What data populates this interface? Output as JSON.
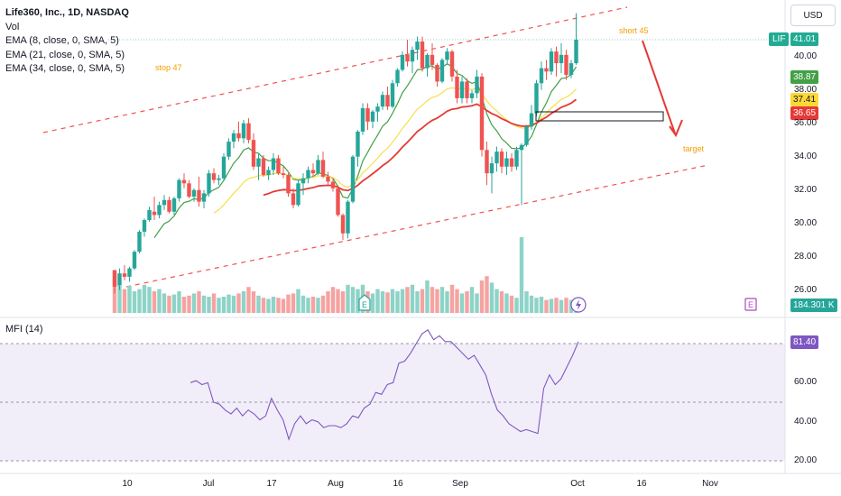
{
  "legend": {
    "title": "Life360, Inc., 1D, NASDAQ",
    "vol": "Vol",
    "ema1": "EMA (8, close, 0, SMA, 5)",
    "ema2": "EMA (21, close, 0, SMA, 5)",
    "ema3": "EMA (34, close, 0, SMA, 5)"
  },
  "currency_button": "USD",
  "ticker": "LIF",
  "last_price": "41.01",
  "ema_values": {
    "ema8": "38.87",
    "ema21": "37.41",
    "ema34": "36.65"
  },
  "volume_value": "184.301 K",
  "mfi": {
    "label": "MFI (14)",
    "value": "81.40"
  },
  "annotations": {
    "stop": "stop 47",
    "short": "short 45",
    "target": "target"
  },
  "price_axis": [
    "40.00",
    "38.00",
    "36.00",
    "34.00",
    "32.00",
    "30.00",
    "28.00",
    "26.00"
  ],
  "mfi_axis": [
    "60.00",
    "40.00",
    "20.00"
  ],
  "time_axis": [
    "10",
    "Jul",
    "17",
    "Aug",
    "16",
    "Sep",
    "Oct",
    "16",
    "Nov"
  ],
  "colors": {
    "up": "#26a69a",
    "down": "#ef5350",
    "ema8": "#43a047",
    "ema21": "#f4e04d",
    "ema34": "#e53935",
    "mfi": "#7e57c2",
    "annotation": "#f59d00"
  },
  "chart_data": {
    "type": "candlestick",
    "price_range": [
      25.5,
      42.6
    ],
    "candles": [
      [
        27.2,
        27.2,
        25.8,
        26.2
      ],
      [
        26.3,
        27.3,
        26.0,
        27.0
      ],
      [
        27.0,
        27.5,
        26.6,
        26.8
      ],
      [
        26.8,
        27.4,
        26.5,
        27.3
      ],
      [
        27.3,
        28.4,
        27.2,
        28.3
      ],
      [
        28.3,
        29.6,
        28.2,
        29.5
      ],
      [
        29.5,
        30.3,
        29.2,
        30.2
      ],
      [
        30.2,
        31.0,
        30.1,
        30.8
      ],
      [
        30.7,
        31.6,
        30.2,
        30.5
      ],
      [
        30.5,
        31.3,
        30.3,
        31.1
      ],
      [
        31.1,
        31.7,
        30.8,
        31.4
      ],
      [
        31.4,
        31.6,
        30.6,
        30.7
      ],
      [
        30.7,
        31.6,
        30.5,
        31.5
      ],
      [
        31.5,
        32.7,
        31.3,
        32.6
      ],
      [
        32.6,
        33.0,
        32.1,
        32.4
      ],
      [
        32.4,
        32.6,
        31.5,
        31.6
      ],
      [
        31.6,
        32.1,
        31.3,
        32.0
      ],
      [
        32.0,
        32.8,
        31.0,
        31.3
      ],
      [
        31.3,
        32.0,
        30.9,
        31.8
      ],
      [
        31.8,
        33.2,
        31.6,
        33.0
      ],
      [
        33.0,
        33.3,
        32.4,
        32.6
      ],
      [
        32.6,
        32.9,
        32.3,
        32.7
      ],
      [
        32.7,
        34.2,
        32.6,
        34.0
      ],
      [
        34.0,
        35.1,
        33.8,
        34.9
      ],
      [
        34.9,
        35.6,
        34.5,
        35.4
      ],
      [
        35.4,
        36.1,
        34.9,
        35.1
      ],
      [
        35.1,
        36.2,
        34.8,
        36.0
      ],
      [
        36.0,
        36.3,
        34.8,
        35.0
      ],
      [
        35.0,
        35.4,
        33.2,
        33.4
      ],
      [
        33.4,
        34.2,
        32.6,
        33.9
      ],
      [
        33.9,
        34.1,
        32.8,
        32.9
      ],
      [
        32.9,
        33.4,
        32.6,
        33.2
      ],
      [
        33.2,
        34.2,
        32.9,
        33.9
      ],
      [
        33.9,
        34.1,
        32.9,
        33.0
      ],
      [
        33.0,
        33.4,
        32.7,
        32.9
      ],
      [
        32.9,
        33.0,
        31.6,
        31.8
      ],
      [
        31.8,
        32.1,
        30.9,
        31.1
      ],
      [
        31.1,
        32.6,
        31.0,
        32.4
      ],
      [
        32.4,
        33.0,
        31.7,
        32.7
      ],
      [
        32.7,
        33.4,
        32.4,
        33.2
      ],
      [
        33.2,
        33.6,
        32.8,
        33.0
      ],
      [
        33.0,
        34.1,
        32.9,
        33.8
      ],
      [
        33.8,
        34.3,
        32.7,
        32.8
      ],
      [
        32.8,
        33.1,
        32.3,
        32.5
      ],
      [
        32.5,
        32.7,
        31.9,
        32.1
      ],
      [
        32.1,
        32.2,
        30.4,
        30.5
      ],
      [
        30.5,
        30.6,
        29.0,
        29.4
      ],
      [
        29.4,
        31.4,
        29.1,
        31.3
      ],
      [
        31.3,
        34.1,
        31.2,
        34.0
      ],
      [
        34.0,
        35.6,
        33.4,
        35.5
      ],
      [
        35.5,
        37.2,
        35.3,
        36.9
      ],
      [
        36.9,
        37.2,
        35.6,
        36.1
      ],
      [
        36.1,
        36.8,
        35.7,
        36.7
      ],
      [
        36.7,
        37.2,
        36.1,
        37.0
      ],
      [
        37.0,
        37.9,
        36.8,
        37.7
      ],
      [
        37.7,
        38.2,
        36.8,
        37.0
      ],
      [
        37.0,
        38.6,
        36.9,
        38.4
      ],
      [
        38.4,
        39.3,
        38.2,
        39.2
      ],
      [
        39.2,
        40.3,
        39.1,
        40.1
      ],
      [
        40.1,
        41.0,
        39.4,
        39.7
      ],
      [
        39.7,
        40.6,
        39.0,
        40.4
      ],
      [
        40.4,
        41.2,
        39.8,
        40.9
      ],
      [
        40.9,
        41.2,
        39.1,
        39.3
      ],
      [
        39.3,
        40.2,
        38.8,
        40.1
      ],
      [
        40.1,
        40.8,
        39.2,
        39.5
      ],
      [
        39.5,
        39.6,
        38.2,
        38.5
      ],
      [
        38.5,
        39.9,
        38.4,
        39.8
      ],
      [
        39.8,
        40.5,
        39.5,
        40.3
      ],
      [
        40.3,
        40.4,
        38.5,
        38.8
      ],
      [
        38.8,
        39.2,
        37.2,
        37.5
      ],
      [
        37.5,
        38.8,
        37.2,
        38.5
      ],
      [
        38.5,
        38.7,
        37.2,
        37.5
      ],
      [
        37.5,
        38.0,
        37.2,
        37.8
      ],
      [
        37.8,
        39.2,
        37.5,
        38.8
      ],
      [
        38.8,
        39.0,
        34.0,
        34.4
      ],
      [
        34.4,
        34.9,
        32.3,
        33.0
      ],
      [
        33.0,
        34.0,
        31.8,
        33.6
      ],
      [
        33.6,
        34.6,
        33.1,
        34.3
      ],
      [
        34.3,
        34.5,
        33.0,
        33.4
      ],
      [
        33.4,
        34.3,
        32.9,
        33.9
      ],
      [
        33.9,
        34.2,
        33.1,
        33.4
      ],
      [
        33.4,
        34.6,
        33.2,
        34.4
      ],
      [
        34.4,
        34.8,
        31.1,
        34.7
      ],
      [
        34.7,
        35.9,
        34.6,
        35.8
      ],
      [
        35.8,
        37.1,
        35.6,
        36.6
      ],
      [
        36.6,
        38.6,
        36.4,
        38.4
      ],
      [
        38.4,
        39.7,
        38.0,
        39.3
      ],
      [
        39.3,
        39.8,
        38.6,
        39.1
      ],
      [
        39.1,
        40.5,
        38.9,
        40.3
      ],
      [
        40.3,
        40.6,
        38.8,
        39.6
      ],
      [
        39.6,
        40.8,
        39.0,
        40.1
      ],
      [
        40.1,
        40.4,
        38.6,
        38.9
      ],
      [
        38.9,
        39.8,
        38.7,
        39.6
      ],
      [
        39.6,
        42.6,
        39.5,
        41.01
      ]
    ],
    "volume": [
      0.38,
      0.26,
      0.22,
      0.25,
      0.2,
      0.22,
      0.26,
      0.24,
      0.2,
      0.22,
      0.18,
      0.16,
      0.17,
      0.2,
      0.15,
      0.16,
      0.18,
      0.2,
      0.16,
      0.15,
      0.18,
      0.14,
      0.15,
      0.17,
      0.16,
      0.18,
      0.2,
      0.24,
      0.2,
      0.16,
      0.14,
      0.13,
      0.15,
      0.14,
      0.13,
      0.17,
      0.18,
      0.22,
      0.16,
      0.14,
      0.15,
      0.14,
      0.16,
      0.2,
      0.24,
      0.22,
      0.2,
      0.26,
      0.24,
      0.22,
      0.26,
      0.2,
      0.18,
      0.22,
      0.2,
      0.19,
      0.22,
      0.2,
      0.22,
      0.24,
      0.26,
      0.2,
      0.22,
      0.3,
      0.24,
      0.22,
      0.24,
      0.2,
      0.26,
      0.22,
      0.18,
      0.2,
      0.24,
      0.18,
      0.3,
      0.34,
      0.28,
      0.22,
      0.2,
      0.18,
      0.16,
      0.14,
      0.7,
      0.2,
      0.16,
      0.14,
      0.15,
      0.12,
      0.13,
      0.14,
      0.12,
      0.14,
      0.12,
      0.13
    ],
    "mfi": [
      60,
      61,
      59,
      60,
      50,
      49,
      46,
      44,
      47,
      43,
      46,
      44,
      41,
      43,
      52,
      46,
      41,
      31,
      39,
      43,
      39,
      41,
      40,
      37,
      38,
      38,
      37,
      39,
      43,
      42,
      47,
      49,
      55,
      54,
      59,
      60,
      70,
      71,
      75,
      80,
      85,
      87,
      82,
      84,
      81,
      81,
      78,
      75,
      72,
      74,
      69,
      64,
      54,
      46,
      43,
      39,
      37,
      35,
      36,
      35,
      34,
      57,
      64,
      59,
      62,
      68,
      74,
      81
    ]
  }
}
